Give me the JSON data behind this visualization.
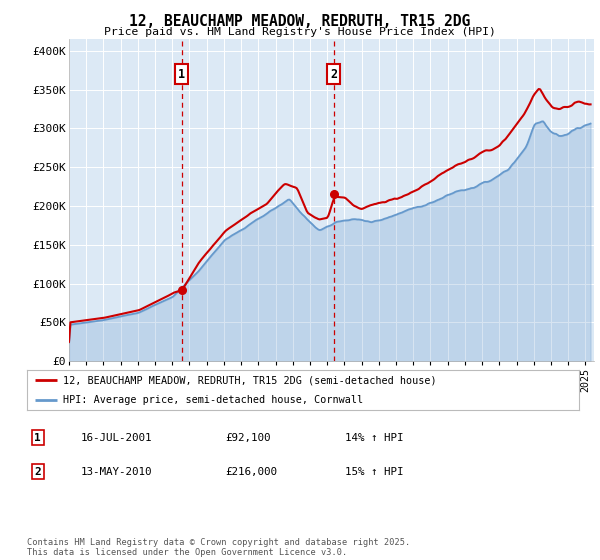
{
  "title": "12, BEAUCHAMP MEADOW, REDRUTH, TR15 2DG",
  "subtitle": "Price paid vs. HM Land Registry's House Price Index (HPI)",
  "ylabel_ticks": [
    "£0",
    "£50K",
    "£100K",
    "£150K",
    "£200K",
    "£250K",
    "£300K",
    "£350K",
    "£400K"
  ],
  "ylim": [
    0,
    415000
  ],
  "xlim_start": 1995.0,
  "xlim_end": 2025.5,
  "background_color": "#dce9f5",
  "grid_color": "#ffffff",
  "legend_entry1": "12, BEAUCHAMP MEADOW, REDRUTH, TR15 2DG (semi-detached house)",
  "legend_entry2": "HPI: Average price, semi-detached house, Cornwall",
  "marker1_year": 2001.54,
  "marker1_price": 92100,
  "marker2_year": 2010.37,
  "marker2_price": 216000,
  "marker1_label": "1",
  "marker2_label": "2",
  "table_row1": [
    "1",
    "16-JUL-2001",
    "£92,100",
    "14% ↑ HPI"
  ],
  "table_row2": [
    "2",
    "13-MAY-2010",
    "£216,000",
    "15% ↑ HPI"
  ],
  "footer": "Contains HM Land Registry data © Crown copyright and database right 2025.\nThis data is licensed under the Open Government Licence v3.0.",
  "line_color_price": "#cc0000",
  "line_color_hpi": "#6699cc",
  "hpi_fill_alpha": 0.25
}
